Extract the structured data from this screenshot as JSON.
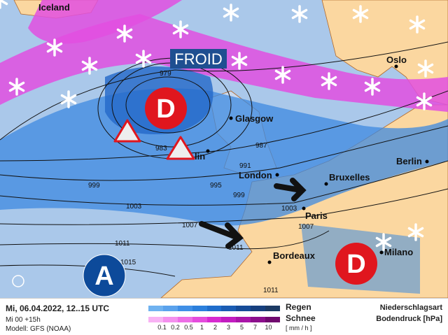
{
  "map": {
    "title_badge": "FROID",
    "cities": {
      "iceland": "Iceland",
      "oslo": "Oslo",
      "glasgow": "Glasgow",
      "dublin": "lin",
      "london": "London",
      "bruxelles": "Bruxelles",
      "berlin": "Berlin",
      "paris": "Paris",
      "bordeaux": "Bordeaux",
      "milano": "Milano"
    },
    "isobars": [
      "979",
      "983",
      "987",
      "991",
      "995",
      "999",
      "999",
      "1003",
      "1003",
      "1007",
      "1007",
      "1011",
      "1011",
      "1015",
      "1011"
    ],
    "lows": [
      "D",
      "D"
    ],
    "high": "A",
    "colors": {
      "sea": "#aac8ea",
      "land": "#fbd7a0",
      "rain": "#3d8ae0",
      "snow": "#e24fe0",
      "low": "#e0161e",
      "high": "#0d4a9a"
    }
  },
  "legend": {
    "datetime": "Mi, 06.04.2022, 12..15 UTC",
    "run": "Mi 00 +15h",
    "model": "Modell: GFS (NOAA)",
    "rain": "Regen",
    "snow": "Schnee",
    "unit": "[ mm / h ]",
    "ticks": [
      "0.1",
      "0.2",
      "0.5",
      "1",
      "2",
      "3",
      "5",
      "7",
      "10"
    ],
    "type": "Niederschlagsart",
    "pressure": "Bodendruck [hPa]",
    "rain_colors": [
      "#6fb2f0",
      "#5aa2ec",
      "#3f8fe6",
      "#2b7fdc",
      "#1f6dcb",
      "#1a5cb3",
      "#164c98",
      "#163f7e",
      "#1c3a64"
    ],
    "snow_colors": [
      "#f8b2f4",
      "#f490ee",
      "#ed6ee6",
      "#e44cdd",
      "#d72ad0",
      "#c21cc0",
      "#a915a8",
      "#8c0f8c",
      "#700a6e"
    ]
  }
}
